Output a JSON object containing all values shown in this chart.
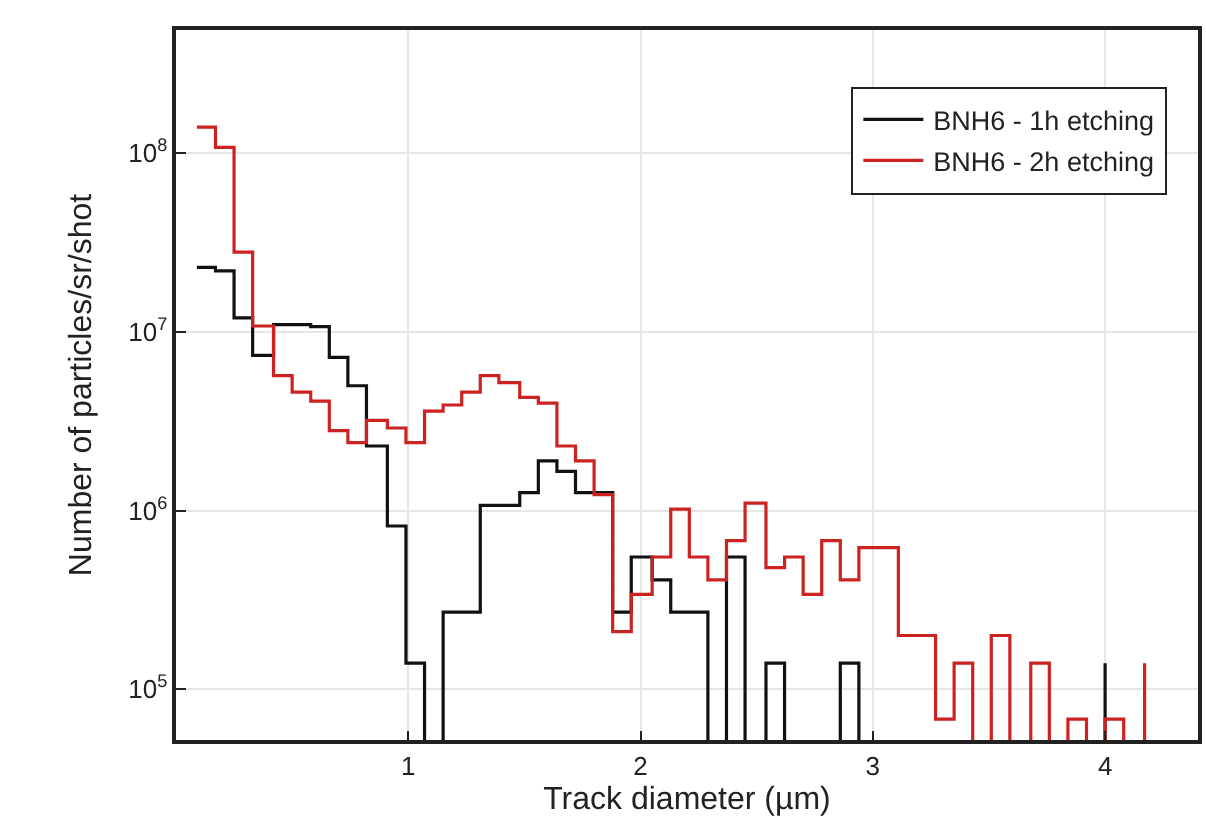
{
  "chart_data": {
    "type": "step",
    "xlabel": "Track diameter (µm)",
    "ylabel": "Number of particles/sr/shot",
    "xlim": [
      0,
      4.4
    ],
    "xticks": [
      1,
      2,
      3,
      4
    ],
    "ylim": [
      52000,
      490000000
    ],
    "yticks": [
      {
        "value": 100000,
        "label": "10$^{5}$"
      },
      {
        "value": 1000000,
        "label": "10$^{6}$"
      },
      {
        "value": 10000000,
        "label": "10$^{7}$"
      },
      {
        "value": 100000000,
        "label": "10$^{8}$"
      }
    ],
    "log": "y",
    "grid": true,
    "legend": "top right",
    "marker": "none",
    "line_style": "solid",
    "series": [
      {
        "name": "BNH6 - 1h etching",
        "color": "#111111",
        "x": [
          0.09,
          0.17,
          0.25,
          0.33,
          0.42,
          0.5,
          0.58,
          0.66,
          0.74,
          0.82,
          0.91,
          0.99,
          1.07,
          1.15,
          1.23,
          1.31,
          1.39,
          1.48,
          1.56,
          1.64,
          1.72,
          1.8,
          1.88,
          1.96,
          2.05,
          2.13,
          2.21,
          2.29,
          2.37,
          2.45,
          2.54,
          2.62,
          2.7,
          2.78,
          2.86,
          2.94,
          3.02,
          3.11,
          3.19,
          3.27,
          3.35,
          3.43,
          3.51,
          3.59,
          3.68,
          3.76,
          3.84,
          3.92,
          4.0
        ],
        "values": [
          23000000,
          22000000,
          12000000,
          7400000,
          11000000,
          11000000,
          10700000,
          7200000,
          5000000,
          2300000,
          820000,
          140000,
          null,
          270000,
          270000,
          1070000,
          1070000,
          1260000,
          1900000,
          1660000,
          1260000,
          1260000,
          270000,
          550000,
          410000,
          270000,
          270000,
          null,
          550000,
          null,
          140000,
          null,
          null,
          null,
          140000,
          null,
          null,
          null,
          null,
          null,
          null,
          null,
          null,
          null,
          null,
          null,
          null,
          null,
          140000
        ]
      },
      {
        "name": "BNH6 - 2h etching",
        "color": "#cc2222",
        "x": [
          0.09,
          0.17,
          0.25,
          0.33,
          0.42,
          0.5,
          0.58,
          0.66,
          0.74,
          0.82,
          0.91,
          0.99,
          1.07,
          1.15,
          1.23,
          1.31,
          1.39,
          1.48,
          1.56,
          1.64,
          1.72,
          1.8,
          1.88,
          1.96,
          2.05,
          2.13,
          2.21,
          2.29,
          2.37,
          2.45,
          2.54,
          2.62,
          2.7,
          2.78,
          2.86,
          2.94,
          3.02,
          3.11,
          3.19,
          3.27,
          3.35,
          3.43,
          3.51,
          3.59,
          3.68,
          3.76,
          3.84,
          3.92,
          4.0,
          4.08,
          4.17
        ],
        "values": [
          140000000,
          108000000,
          28000000,
          10800000,
          5700000,
          4600000,
          4100000,
          2800000,
          2400000,
          3200000,
          2900000,
          2400000,
          3600000,
          3900000,
          4600000,
          5700000,
          5200000,
          4300000,
          4000000,
          2300000,
          1900000,
          1230000,
          210000,
          340000,
          550000,
          1020000,
          550000,
          410000,
          680000,
          1100000,
          480000,
          550000,
          340000,
          680000,
          410000,
          620000,
          620000,
          200000,
          200000,
          68000,
          140000,
          null,
          200000,
          null,
          140000,
          null,
          68000,
          null,
          68000,
          null,
          140000
        ]
      }
    ]
  }
}
